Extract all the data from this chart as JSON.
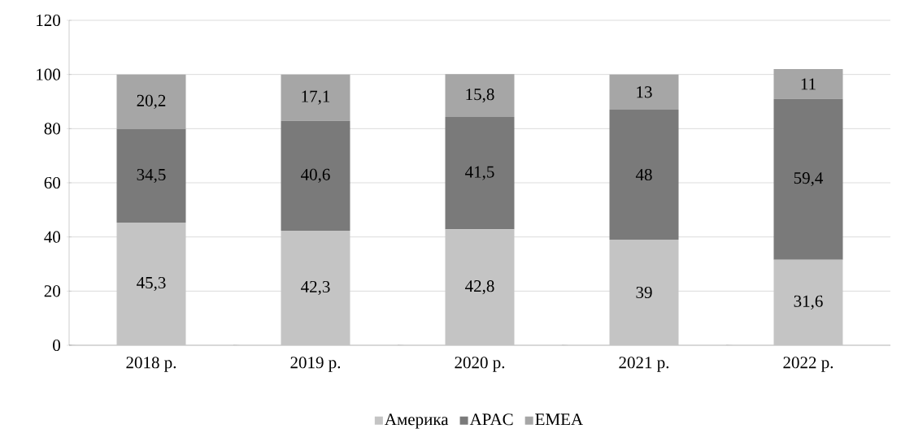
{
  "chart_data": {
    "type": "bar",
    "stacked": true,
    "categories": [
      "2018 р.",
      "2019 р.",
      "2020 р.",
      "2021 р.",
      "2022 р."
    ],
    "series": [
      {
        "name": "Америка",
        "color": "#c4c4c4",
        "values": [
          45.3,
          42.3,
          42.8,
          39,
          31.6
        ],
        "value_labels": [
          "45,3",
          "42,3",
          "42,8",
          "39",
          "31,6"
        ]
      },
      {
        "name": "APAC",
        "color": "#7a7a7a",
        "values": [
          34.5,
          40.6,
          41.5,
          48,
          59.4
        ],
        "value_labels": [
          "34,5",
          "40,6",
          "41,5",
          "48",
          "59,4"
        ]
      },
      {
        "name": "EMEA",
        "color": "#a6a6a6",
        "values": [
          20.2,
          17.1,
          15.8,
          13,
          11
        ],
        "value_labels": [
          "20,2",
          "17,1",
          "15,8",
          "13",
          "11"
        ]
      }
    ],
    "ylim": [
      0,
      120
    ],
    "yticks": [
      0,
      20,
      40,
      60,
      80,
      100,
      120
    ],
    "grid": "y",
    "legend": "bottom"
  }
}
